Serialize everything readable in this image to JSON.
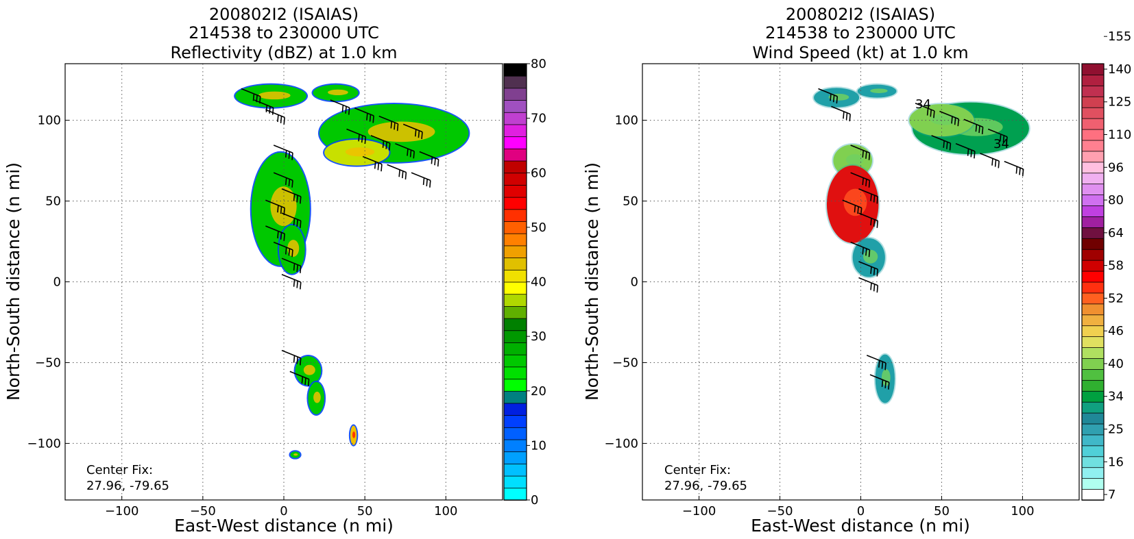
{
  "panels": [
    {
      "title_lines": [
        "200802I2 (ISAIAS)",
        "214538 to 230000 UTC",
        "Reflectivity (dBZ) at 1.0 km"
      ],
      "center_fix_label": "Center Fix:",
      "center_fix_value": "27.96, -79.65",
      "colorbar": {
        "min": 0,
        "max": 80,
        "tick_labels": [
          "0",
          "10",
          "20",
          "30",
          "40",
          "50",
          "60",
          "70",
          "80"
        ],
        "colors": [
          "#00ffff",
          "#00dfff",
          "#00c0ff",
          "#00a0ff",
          "#0080ff",
          "#0060ff",
          "#0040ff",
          "#0020e0",
          "#008080",
          "#00ff00",
          "#00e000",
          "#00c800",
          "#00b000",
          "#009800",
          "#008000",
          "#60b000",
          "#b0d800",
          "#ffff00",
          "#f0e000",
          "#e0c000",
          "#f0a000",
          "#ff8000",
          "#ff6000",
          "#ff3000",
          "#ff0000",
          "#e00000",
          "#d00000",
          "#c00000",
          "#e00080",
          "#ff00ff",
          "#e020e0",
          "#c040d0",
          "#a050c0",
          "#804090",
          "#503050",
          "#000000"
        ]
      },
      "field_colors": {
        "low": "#0040ff",
        "mid": "#00c800",
        "high": "#c8e000",
        "peak": "#f0c000"
      }
    },
    {
      "title_lines": [
        "200802I2 (ISAIAS)",
        "214538 to 230000 UTC",
        "Wind Speed (kt) at 1.0 km"
      ],
      "center_fix_label": "Center Fix:",
      "center_fix_value": "27.96, -79.65",
      "contour_labels": [
        "34",
        "34"
      ],
      "colorbar": {
        "tick_labels": [
          "7",
          "16",
          "25",
          "34",
          "40",
          "46",
          "52",
          "58",
          "64",
          "80",
          "96",
          "110",
          "125",
          "140",
          "155"
        ],
        "colors": [
          "#ffffff",
          "#b0fff0",
          "#90f0f0",
          "#70e0e0",
          "#50d0d8",
          "#40b8c8",
          "#30a0b0",
          "#208898",
          "#10a080",
          "#00a040",
          "#30b030",
          "#50c040",
          "#80d050",
          "#b0e060",
          "#e0e060",
          "#f0d050",
          "#f0b040",
          "#f09030",
          "#ff6020",
          "#ff3010",
          "#ff0000",
          "#d00000",
          "#a00000",
          "#700000",
          "#701040",
          "#a020a0",
          "#c040e0",
          "#d070f0",
          "#e090f0",
          "#f0b0f0",
          "#ffc0e0",
          "#ffa0b0",
          "#ff8090",
          "#ff7080",
          "#f06070",
          "#e05060",
          "#d04050",
          "#c03050",
          "#b02040",
          "#901030"
        ]
      },
      "field_colors": {
        "low": "#20a0a8",
        "mid": "#00a050",
        "high": "#80d050",
        "peak": "#e01010"
      }
    }
  ],
  "chart_data": [
    {
      "type": "heatmap",
      "title": "200802I2 (ISAIAS) 214538 to 230000 UTC Reflectivity (dBZ) at 1.0 km",
      "xlabel": "East-West distance (n mi)",
      "ylabel": "North-South distance (n mi)",
      "xlim": [
        -135,
        135
      ],
      "ylim": [
        -135,
        135
      ],
      "x_ticks": [
        -100,
        -50,
        0,
        50,
        100
      ],
      "y_ticks": [
        -100,
        -50,
        0,
        50,
        100
      ],
      "x_tick_labels": [
        "−100",
        "−50",
        "0",
        "50",
        "100"
      ],
      "y_tick_labels": [
        "−100",
        "−50",
        "0",
        "50",
        "100"
      ],
      "grid": true,
      "units": "dBZ",
      "echo_regions": [
        {
          "cx": -8,
          "cy": 115,
          "rx": 22,
          "ry": 7,
          "value": 30
        },
        {
          "cx": 32,
          "cy": 117,
          "rx": 14,
          "ry": 5,
          "value": 30
        },
        {
          "cx": 68,
          "cy": 92,
          "rx": 46,
          "ry": 18,
          "value": 28
        },
        {
          "cx": 45,
          "cy": 80,
          "rx": 20,
          "ry": 8,
          "value": 36
        },
        {
          "cx": -2,
          "cy": 45,
          "rx": 18,
          "ry": 35,
          "value": 28
        },
        {
          "cx": 5,
          "cy": 20,
          "rx": 8,
          "ry": 15,
          "value": 32
        },
        {
          "cx": 15,
          "cy": -55,
          "rx": 8,
          "ry": 9,
          "value": 25
        },
        {
          "cx": 20,
          "cy": -72,
          "rx": 5,
          "ry": 10,
          "value": 30
        },
        {
          "cx": 43,
          "cy": -95,
          "rx": 2,
          "ry": 6,
          "value": 45
        },
        {
          "cx": 7,
          "cy": -107,
          "rx": 3,
          "ry": 2,
          "value": 22
        }
      ],
      "wind_barbs": [
        {
          "x": -20,
          "y": 117
        },
        {
          "x": -12,
          "y": 110
        },
        {
          "x": -5,
          "y": 104
        },
        {
          "x": 35,
          "y": 110
        },
        {
          "x": 50,
          "y": 105
        },
        {
          "x": 65,
          "y": 100
        },
        {
          "x": 80,
          "y": 95
        },
        {
          "x": 45,
          "y": 92
        },
        {
          "x": 60,
          "y": 88
        },
        {
          "x": 75,
          "y": 83
        },
        {
          "x": 90,
          "y": 78
        },
        {
          "x": 55,
          "y": 75
        },
        {
          "x": 70,
          "y": 70
        },
        {
          "x": 85,
          "y": 65
        },
        {
          "x": 0,
          "y": 82
        },
        {
          "x": 0,
          "y": 65
        },
        {
          "x": 5,
          "y": 55
        },
        {
          "x": -5,
          "y": 48
        },
        {
          "x": 5,
          "y": 40
        },
        {
          "x": -5,
          "y": 32
        },
        {
          "x": 0,
          "y": 22
        },
        {
          "x": 5,
          "y": 12
        },
        {
          "x": 5,
          "y": 2
        },
        {
          "x": 5,
          "y": -45
        },
        {
          "x": 10,
          "y": -58
        }
      ]
    },
    {
      "type": "heatmap",
      "title": "200802I2 (ISAIAS) 214538 to 230000 UTC Wind Speed (kt) at 1.0 km",
      "xlabel": "East-West distance (n mi)",
      "ylabel": "North-South distance (n mi)",
      "xlim": [
        -135,
        135
      ],
      "ylim": [
        -135,
        135
      ],
      "x_ticks": [
        -100,
        -50,
        0,
        50,
        100
      ],
      "y_ticks": [
        -100,
        -50,
        0,
        50,
        100
      ],
      "x_tick_labels": [
        "−100",
        "−50",
        "0",
        "50",
        "100"
      ],
      "y_tick_labels": [
        "−100",
        "−50",
        "0",
        "50",
        "100"
      ],
      "grid": true,
      "units": "kt",
      "echo_regions": [
        {
          "cx": -15,
          "cy": 114,
          "rx": 14,
          "ry": 6,
          "value": 22
        },
        {
          "cx": 10,
          "cy": 118,
          "rx": 12,
          "ry": 4,
          "value": 25
        },
        {
          "cx": 68,
          "cy": 95,
          "rx": 36,
          "ry": 16,
          "value": 36
        },
        {
          "cx": 50,
          "cy": 100,
          "rx": 20,
          "ry": 10,
          "value": 42
        },
        {
          "cx": -5,
          "cy": 75,
          "rx": 12,
          "ry": 10,
          "value": 44
        },
        {
          "cx": -5,
          "cy": 48,
          "rx": 16,
          "ry": 24,
          "value": 56
        },
        {
          "cx": 5,
          "cy": 15,
          "rx": 10,
          "ry": 12,
          "value": 22
        },
        {
          "cx": 15,
          "cy": -60,
          "rx": 6,
          "ry": 15,
          "value": 28
        }
      ],
      "wind_barbs": [
        {
          "x": -20,
          "y": 117
        },
        {
          "x": -12,
          "y": 106
        },
        {
          "x": 40,
          "y": 108
        },
        {
          "x": 55,
          "y": 103
        },
        {
          "x": 70,
          "y": 98
        },
        {
          "x": 85,
          "y": 92
        },
        {
          "x": 50,
          "y": 88
        },
        {
          "x": 65,
          "y": 83
        },
        {
          "x": 80,
          "y": 77
        },
        {
          "x": 95,
          "y": 72
        },
        {
          "x": 0,
          "y": 82
        },
        {
          "x": 0,
          "y": 65
        },
        {
          "x": 5,
          "y": 55
        },
        {
          "x": -5,
          "y": 48
        },
        {
          "x": 5,
          "y": 40
        },
        {
          "x": 0,
          "y": 22
        },
        {
          "x": 5,
          "y": 10
        },
        {
          "x": 5,
          "y": 0
        },
        {
          "x": 10,
          "y": -48
        },
        {
          "x": 12,
          "y": -60
        }
      ]
    }
  ]
}
